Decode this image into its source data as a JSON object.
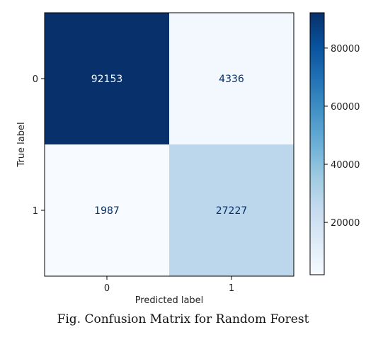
{
  "chart_data": {
    "type": "heatmap",
    "x_tick_labels": [
      "0",
      "1"
    ],
    "y_tick_labels": [
      "0",
      "1"
    ],
    "values": [
      [
        92153,
        4336
      ],
      [
        1987,
        27227
      ]
    ],
    "xlabel": "Predicted label",
    "ylabel": "True label",
    "colorscale": "Blues",
    "vmin": 1987,
    "vmax": 92153,
    "colorbar_ticks": [
      20000,
      40000,
      60000,
      80000
    ],
    "colorbar_tick_labels": [
      "20000",
      "40000",
      "60000",
      "80000"
    ],
    "grid": false
  },
  "caption": "Fig. Confusion Matrix for Random Forest"
}
